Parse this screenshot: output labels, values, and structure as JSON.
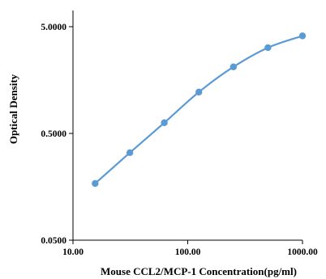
{
  "chart_data": {
    "type": "scatter",
    "title": "",
    "xlabel": "Mouse CCL2/MCP-1 Concentration(pg/ml)",
    "ylabel": "Optical Density",
    "x_scale": "log",
    "y_scale": "log",
    "xlim": [
      10,
      1000
    ],
    "ylim": [
      0.05,
      5
    ],
    "x_ticks": [
      10,
      100,
      1000
    ],
    "x_tick_labels": [
      "10.00",
      "100.00",
      "1000.00"
    ],
    "y_ticks": [
      0.05,
      0.5,
      5
    ],
    "y_tick_labels": [
      "0.0500",
      "0.5000",
      "5.0000"
    ],
    "grid": false,
    "legend": "none",
    "series": [
      {
        "color": "#5b9bd5",
        "line": "smooth",
        "x": [
          15.6,
          31.3,
          62.5,
          125,
          250,
          500,
          1000
        ],
        "y": [
          0.17,
          0.33,
          0.63,
          1.22,
          2.1,
          3.18,
          4.1
        ]
      }
    ]
  }
}
